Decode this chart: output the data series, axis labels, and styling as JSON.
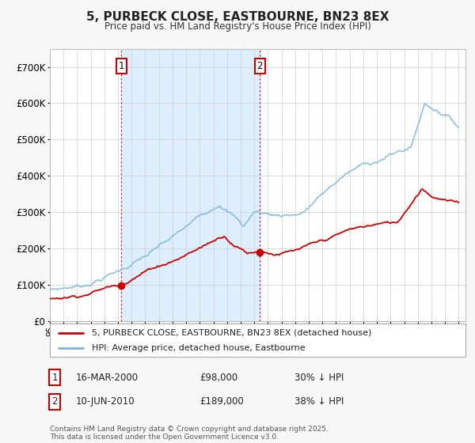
{
  "title": "5, PURBECK CLOSE, EASTBOURNE, BN23 8EX",
  "subtitle": "Price paid vs. HM Land Registry's House Price Index (HPI)",
  "legend_line1": "5, PURBECK CLOSE, EASTBOURNE, BN23 8EX (detached house)",
  "legend_line2": "HPI: Average price, detached house, Eastbourne",
  "footnote": "Contains HM Land Registry data © Crown copyright and database right 2025.\nThis data is licensed under the Open Government Licence v3.0.",
  "purchase1_date": "16-MAR-2000",
  "purchase1_price": 98000,
  "purchase1_label": "30% ↓ HPI",
  "purchase2_date": "10-JUN-2010",
  "purchase2_price": 189000,
  "purchase2_label": "38% ↓ HPI",
  "hpi_color": "#7ab4d8",
  "price_color": "#cc0000",
  "background_color": "#f7f7f7",
  "plot_bg": "#ffffff",
  "shading_color": "#ddeeff",
  "ylim": [
    0,
    750000
  ],
  "yticks": [
    0,
    100000,
    200000,
    300000,
    400000,
    500000,
    600000,
    700000
  ],
  "ytick_labels": [
    "£0",
    "£100K",
    "£200K",
    "£300K",
    "£400K",
    "£500K",
    "£600K",
    "£700K"
  ],
  "year_start": 1995,
  "year_end": 2025,
  "purchase1_year": 2000.21,
  "purchase2_year": 2010.45
}
